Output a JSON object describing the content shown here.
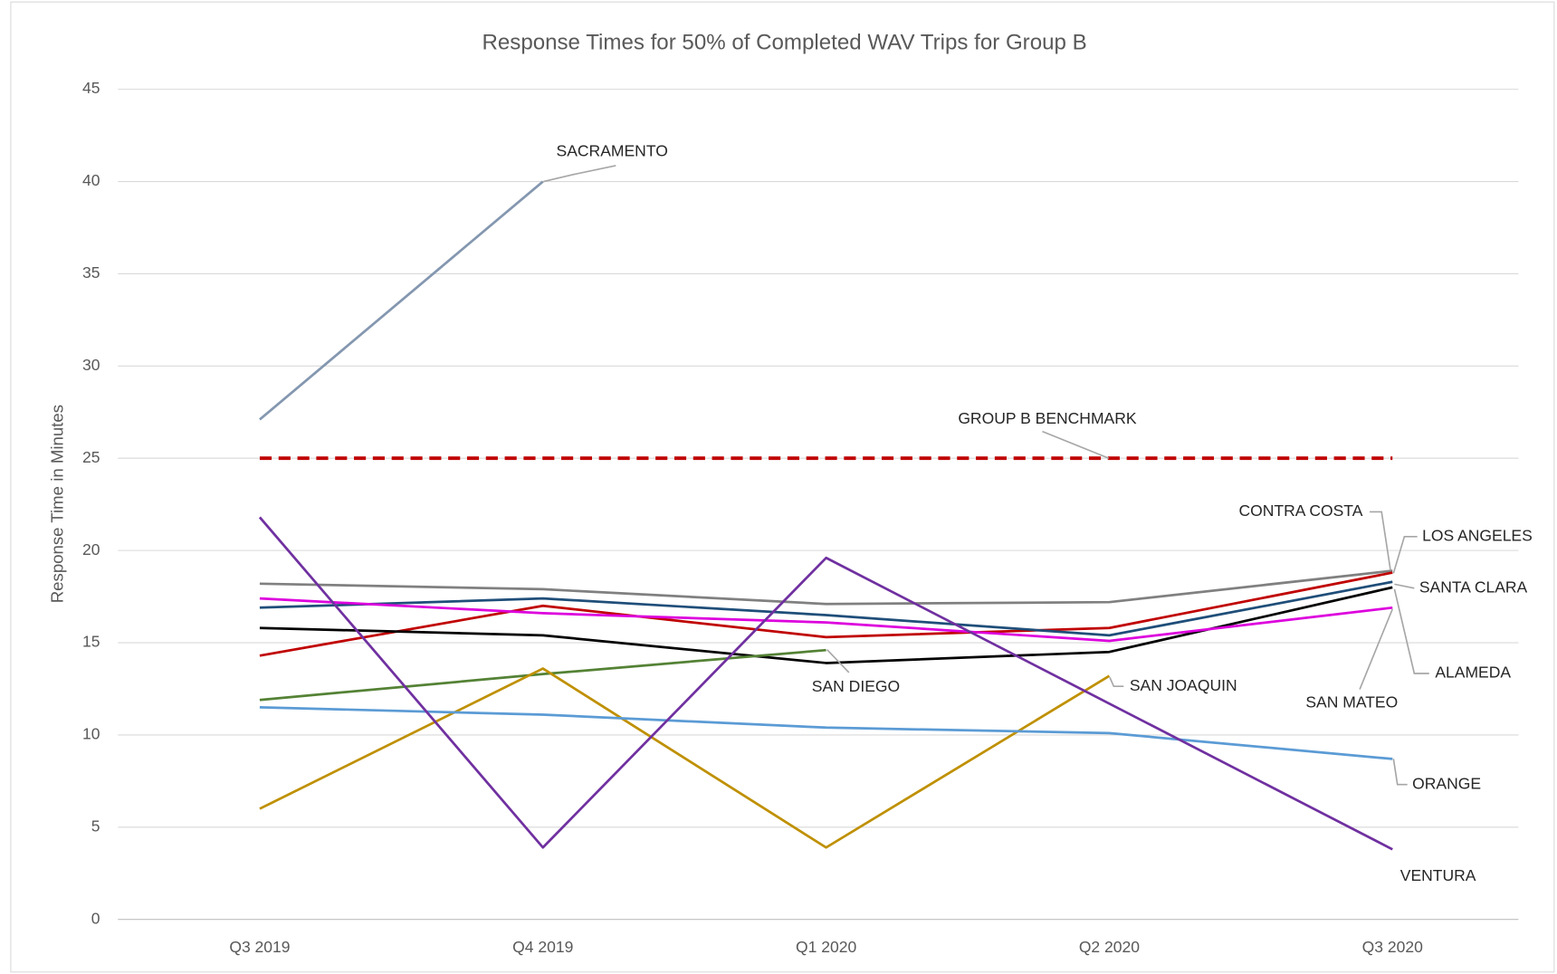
{
  "chart_data": {
    "type": "line",
    "title": "Response Times for 50% of Completed WAV Trips for Group B",
    "y_label": "Response Time in Minutes",
    "categories": [
      "Q3 2019",
      "Q4 2019",
      "Q1 2020",
      "Q2 2020",
      "Q3 2020"
    ],
    "ylim": [
      0,
      45
    ],
    "yticks": [
      0,
      5,
      10,
      15,
      20,
      25,
      30,
      35,
      40,
      45
    ],
    "grid": true,
    "series": [
      {
        "name": "SACRAMENTO",
        "color": "#8497b0",
        "values": [
          27.1,
          40,
          null,
          null,
          null
        ]
      },
      {
        "name": "GROUP B BENCHMARK",
        "color": "#c00000",
        "dashed": true,
        "values": [
          25,
          25,
          25,
          25,
          25
        ]
      },
      {
        "name": "CONTRA COSTA",
        "color": "#808080",
        "values": [
          18.2,
          17.9,
          17.1,
          17.2,
          18.9
        ]
      },
      {
        "name": "LOS ANGELES",
        "color": "#c00000",
        "values": [
          14.3,
          17.0,
          15.3,
          15.8,
          18.8
        ]
      },
      {
        "name": "SANTA CLARA",
        "color": "#1f4e79",
        "values": [
          16.9,
          17.4,
          16.5,
          15.4,
          18.3
        ]
      },
      {
        "name": "ALAMEDA",
        "color": "#000000",
        "values": [
          15.8,
          15.4,
          13.9,
          14.5,
          18.0
        ]
      },
      {
        "name": "SAN MATEO",
        "color": "#dd00dd",
        "values": [
          17.4,
          16.6,
          16.1,
          15.1,
          16.9
        ]
      },
      {
        "name": "SAN DIEGO",
        "color": "#548235",
        "values": [
          11.9,
          13.3,
          14.6,
          null,
          null
        ]
      },
      {
        "name": "SAN JOAQUIN",
        "color": "#bf9000",
        "values": [
          6.0,
          13.6,
          3.9,
          13.2,
          null
        ]
      },
      {
        "name": "ORANGE",
        "color": "#5b9bd5",
        "values": [
          11.5,
          11.1,
          10.4,
          10.1,
          8.7
        ]
      },
      {
        "name": "VENTURA",
        "color": "#7030a0",
        "values": [
          21.8,
          3.9,
          19.6,
          11.7,
          3.8
        ]
      }
    ]
  }
}
